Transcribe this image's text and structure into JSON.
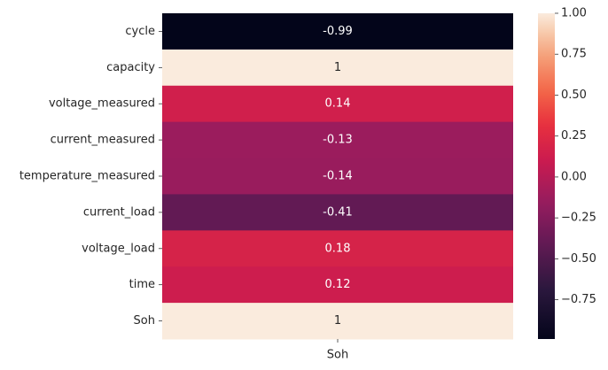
{
  "chart_data": {
    "type": "heatmap",
    "rows": [
      "cycle",
      "capacity",
      "voltage_measured",
      "current_measured",
      "temperature_measured",
      "current_load",
      "voltage_load",
      "time",
      "Soh"
    ],
    "columns": [
      "Soh"
    ],
    "values": [
      -0.99,
      1,
      0.14,
      -0.13,
      -0.14,
      -0.41,
      0.18,
      0.12,
      1
    ],
    "cell_labels": [
      "-0.99",
      "1",
      "0.14",
      "-0.13",
      "-0.14",
      "-0.41",
      "0.18",
      "0.12",
      "1"
    ],
    "colorbar": {
      "range": [
        -0.99,
        1
      ],
      "ticks": [
        1.0,
        0.75,
        0.5,
        0.25,
        0.0,
        -0.25,
        -0.5,
        -0.75
      ],
      "tick_labels": [
        "1.00",
        "0.75",
        "0.50",
        "0.25",
        "0.00",
        "−0.25",
        "−0.50",
        "−0.75"
      ]
    },
    "colormap": "rocket",
    "title": "",
    "xlabel": "",
    "ylabel": ""
  }
}
